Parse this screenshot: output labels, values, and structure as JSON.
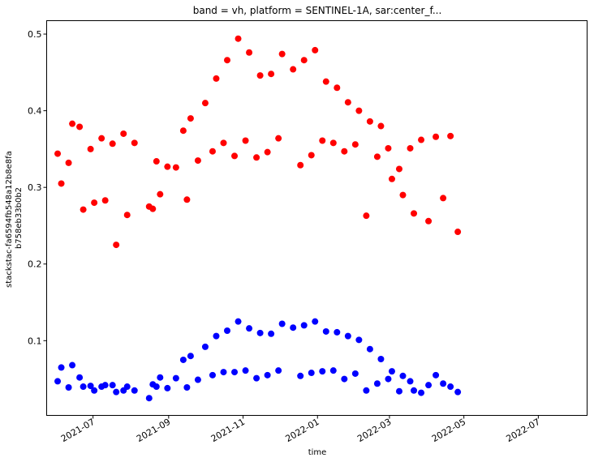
{
  "chart_data": {
    "type": "scatter",
    "title": "band = vh, platform = SENTINEL-1A, sar:center_f...",
    "xlabel": "time",
    "ylabel_lines": [
      "stackstac-fa6594fb548a12b8e8fa",
      "b758eb33b0b2"
    ],
    "xlim": [
      "2021-05-24",
      "2022-08-10"
    ],
    "ylim": [
      0.0025,
      0.5175
    ],
    "x_ticks": [
      {
        "date": "2021-07-01",
        "label": "2021-07"
      },
      {
        "date": "2021-09-01",
        "label": "2021-09"
      },
      {
        "date": "2021-11-01",
        "label": "2021-11"
      },
      {
        "date": "2022-01-01",
        "label": "2022-01"
      },
      {
        "date": "2022-03-01",
        "label": "2022-03"
      },
      {
        "date": "2022-05-01",
        "label": "2022-05"
      },
      {
        "date": "2022-07-01",
        "label": "2022-07"
      }
    ],
    "y_ticks": [
      {
        "value": 0.1,
        "label": "0.1"
      },
      {
        "value": 0.2,
        "label": "0.2"
      },
      {
        "value": 0.3,
        "label": "0.3"
      },
      {
        "value": 0.4,
        "label": "0.4"
      },
      {
        "value": 0.5,
        "label": "0.5"
      }
    ],
    "grid": false,
    "legend": "none",
    "series": [
      {
        "color": "#ff0000",
        "points": [
          {
            "x": "2021-06-02",
            "y": 0.344
          },
          {
            "x": "2021-06-05",
            "y": 0.305
          },
          {
            "x": "2021-06-11",
            "y": 0.332
          },
          {
            "x": "2021-06-14",
            "y": 0.383
          },
          {
            "x": "2021-06-20",
            "y": 0.379
          },
          {
            "x": "2021-06-23",
            "y": 0.271
          },
          {
            "x": "2021-06-29",
            "y": 0.35
          },
          {
            "x": "2021-07-02",
            "y": 0.28
          },
          {
            "x": "2021-07-08",
            "y": 0.364
          },
          {
            "x": "2021-07-11",
            "y": 0.283
          },
          {
            "x": "2021-07-17",
            "y": 0.357
          },
          {
            "x": "2021-07-20",
            "y": 0.225
          },
          {
            "x": "2021-07-26",
            "y": 0.37
          },
          {
            "x": "2021-07-29",
            "y": 0.264
          },
          {
            "x": "2021-08-04",
            "y": 0.358
          },
          {
            "x": "2021-08-16",
            "y": 0.275
          },
          {
            "x": "2021-08-19",
            "y": 0.272
          },
          {
            "x": "2021-08-22",
            "y": 0.334
          },
          {
            "x": "2021-08-25",
            "y": 0.291
          },
          {
            "x": "2021-08-31",
            "y": 0.327
          },
          {
            "x": "2021-09-07",
            "y": 0.326
          },
          {
            "x": "2021-09-13",
            "y": 0.374
          },
          {
            "x": "2021-09-16",
            "y": 0.284
          },
          {
            "x": "2021-09-19",
            "y": 0.39
          },
          {
            "x": "2021-09-25",
            "y": 0.335
          },
          {
            "x": "2021-10-01",
            "y": 0.41
          },
          {
            "x": "2021-10-07",
            "y": 0.347
          },
          {
            "x": "2021-10-10",
            "y": 0.442
          },
          {
            "x": "2021-10-16",
            "y": 0.358
          },
          {
            "x": "2021-10-19",
            "y": 0.466
          },
          {
            "x": "2021-10-25",
            "y": 0.341
          },
          {
            "x": "2021-10-28",
            "y": 0.494
          },
          {
            "x": "2021-11-03",
            "y": 0.361
          },
          {
            "x": "2021-11-06",
            "y": 0.476
          },
          {
            "x": "2021-11-12",
            "y": 0.339
          },
          {
            "x": "2021-11-15",
            "y": 0.446
          },
          {
            "x": "2021-11-21",
            "y": 0.346
          },
          {
            "x": "2021-11-24",
            "y": 0.448
          },
          {
            "x": "2021-11-30",
            "y": 0.364
          },
          {
            "x": "2021-12-03",
            "y": 0.474
          },
          {
            "x": "2021-12-12",
            "y": 0.454
          },
          {
            "x": "2021-12-18",
            "y": 0.329
          },
          {
            "x": "2021-12-21",
            "y": 0.466
          },
          {
            "x": "2021-12-27",
            "y": 0.342
          },
          {
            "x": "2021-12-30",
            "y": 0.479
          },
          {
            "x": "2022-01-05",
            "y": 0.361
          },
          {
            "x": "2022-01-08",
            "y": 0.438
          },
          {
            "x": "2022-01-14",
            "y": 0.358
          },
          {
            "x": "2022-01-17",
            "y": 0.43
          },
          {
            "x": "2022-01-23",
            "y": 0.347
          },
          {
            "x": "2022-01-26",
            "y": 0.411
          },
          {
            "x": "2022-02-01",
            "y": 0.356
          },
          {
            "x": "2022-02-04",
            "y": 0.4
          },
          {
            "x": "2022-02-10",
            "y": 0.263
          },
          {
            "x": "2022-02-13",
            "y": 0.386
          },
          {
            "x": "2022-02-19",
            "y": 0.34
          },
          {
            "x": "2022-02-22",
            "y": 0.38
          },
          {
            "x": "2022-02-28",
            "y": 0.351
          },
          {
            "x": "2022-03-03",
            "y": 0.311
          },
          {
            "x": "2022-03-09",
            "y": 0.324
          },
          {
            "x": "2022-03-12",
            "y": 0.29
          },
          {
            "x": "2022-03-18",
            "y": 0.351
          },
          {
            "x": "2022-03-21",
            "y": 0.266
          },
          {
            "x": "2022-03-27",
            "y": 0.362
          },
          {
            "x": "2022-04-02",
            "y": 0.256
          },
          {
            "x": "2022-04-08",
            "y": 0.366
          },
          {
            "x": "2022-04-14",
            "y": 0.286
          },
          {
            "x": "2022-04-20",
            "y": 0.367
          },
          {
            "x": "2022-04-26",
            "y": 0.242
          }
        ]
      },
      {
        "color": "#0000ff",
        "points": [
          {
            "x": "2021-06-02",
            "y": 0.047
          },
          {
            "x": "2021-06-05",
            "y": 0.065
          },
          {
            "x": "2021-06-11",
            "y": 0.039
          },
          {
            "x": "2021-06-14",
            "y": 0.068
          },
          {
            "x": "2021-06-20",
            "y": 0.052
          },
          {
            "x": "2021-06-23",
            "y": 0.04
          },
          {
            "x": "2021-06-29",
            "y": 0.041
          },
          {
            "x": "2021-07-02",
            "y": 0.035
          },
          {
            "x": "2021-07-08",
            "y": 0.04
          },
          {
            "x": "2021-07-11",
            "y": 0.042
          },
          {
            "x": "2021-07-17",
            "y": 0.042
          },
          {
            "x": "2021-07-20",
            "y": 0.033
          },
          {
            "x": "2021-07-26",
            "y": 0.035
          },
          {
            "x": "2021-07-29",
            "y": 0.04
          },
          {
            "x": "2021-08-04",
            "y": 0.035
          },
          {
            "x": "2021-08-16",
            "y": 0.025
          },
          {
            "x": "2021-08-19",
            "y": 0.043
          },
          {
            "x": "2021-08-22",
            "y": 0.04
          },
          {
            "x": "2021-08-25",
            "y": 0.052
          },
          {
            "x": "2021-08-31",
            "y": 0.038
          },
          {
            "x": "2021-09-07",
            "y": 0.051
          },
          {
            "x": "2021-09-13",
            "y": 0.075
          },
          {
            "x": "2021-09-16",
            "y": 0.039
          },
          {
            "x": "2021-09-19",
            "y": 0.08
          },
          {
            "x": "2021-09-25",
            "y": 0.049
          },
          {
            "x": "2021-10-01",
            "y": 0.092
          },
          {
            "x": "2021-10-07",
            "y": 0.055
          },
          {
            "x": "2021-10-10",
            "y": 0.106
          },
          {
            "x": "2021-10-16",
            "y": 0.059
          },
          {
            "x": "2021-10-19",
            "y": 0.113
          },
          {
            "x": "2021-10-25",
            "y": 0.059
          },
          {
            "x": "2021-10-28",
            "y": 0.125
          },
          {
            "x": "2021-11-03",
            "y": 0.061
          },
          {
            "x": "2021-11-06",
            "y": 0.116
          },
          {
            "x": "2021-11-12",
            "y": 0.051
          },
          {
            "x": "2021-11-15",
            "y": 0.11
          },
          {
            "x": "2021-11-21",
            "y": 0.055
          },
          {
            "x": "2021-11-24",
            "y": 0.109
          },
          {
            "x": "2021-11-30",
            "y": 0.061
          },
          {
            "x": "2021-12-03",
            "y": 0.122
          },
          {
            "x": "2021-12-12",
            "y": 0.117
          },
          {
            "x": "2021-12-18",
            "y": 0.054
          },
          {
            "x": "2021-12-21",
            "y": 0.12
          },
          {
            "x": "2021-12-27",
            "y": 0.058
          },
          {
            "x": "2021-12-30",
            "y": 0.125
          },
          {
            "x": "2022-01-05",
            "y": 0.06
          },
          {
            "x": "2022-01-08",
            "y": 0.112
          },
          {
            "x": "2022-01-14",
            "y": 0.061
          },
          {
            "x": "2022-01-17",
            "y": 0.111
          },
          {
            "x": "2022-01-23",
            "y": 0.05
          },
          {
            "x": "2022-01-26",
            "y": 0.106
          },
          {
            "x": "2022-02-01",
            "y": 0.057
          },
          {
            "x": "2022-02-04",
            "y": 0.101
          },
          {
            "x": "2022-02-10",
            "y": 0.035
          },
          {
            "x": "2022-02-13",
            "y": 0.089
          },
          {
            "x": "2022-02-19",
            "y": 0.044
          },
          {
            "x": "2022-02-22",
            "y": 0.076
          },
          {
            "x": "2022-02-28",
            "y": 0.05
          },
          {
            "x": "2022-03-03",
            "y": 0.06
          },
          {
            "x": "2022-03-09",
            "y": 0.034
          },
          {
            "x": "2022-03-12",
            "y": 0.054
          },
          {
            "x": "2022-03-18",
            "y": 0.047
          },
          {
            "x": "2022-03-21",
            "y": 0.035
          },
          {
            "x": "2022-03-27",
            "y": 0.032
          },
          {
            "x": "2022-04-02",
            "y": 0.042
          },
          {
            "x": "2022-04-08",
            "y": 0.055
          },
          {
            "x": "2022-04-14",
            "y": 0.044
          },
          {
            "x": "2022-04-20",
            "y": 0.04
          },
          {
            "x": "2022-04-26",
            "y": 0.033
          }
        ]
      }
    ]
  }
}
